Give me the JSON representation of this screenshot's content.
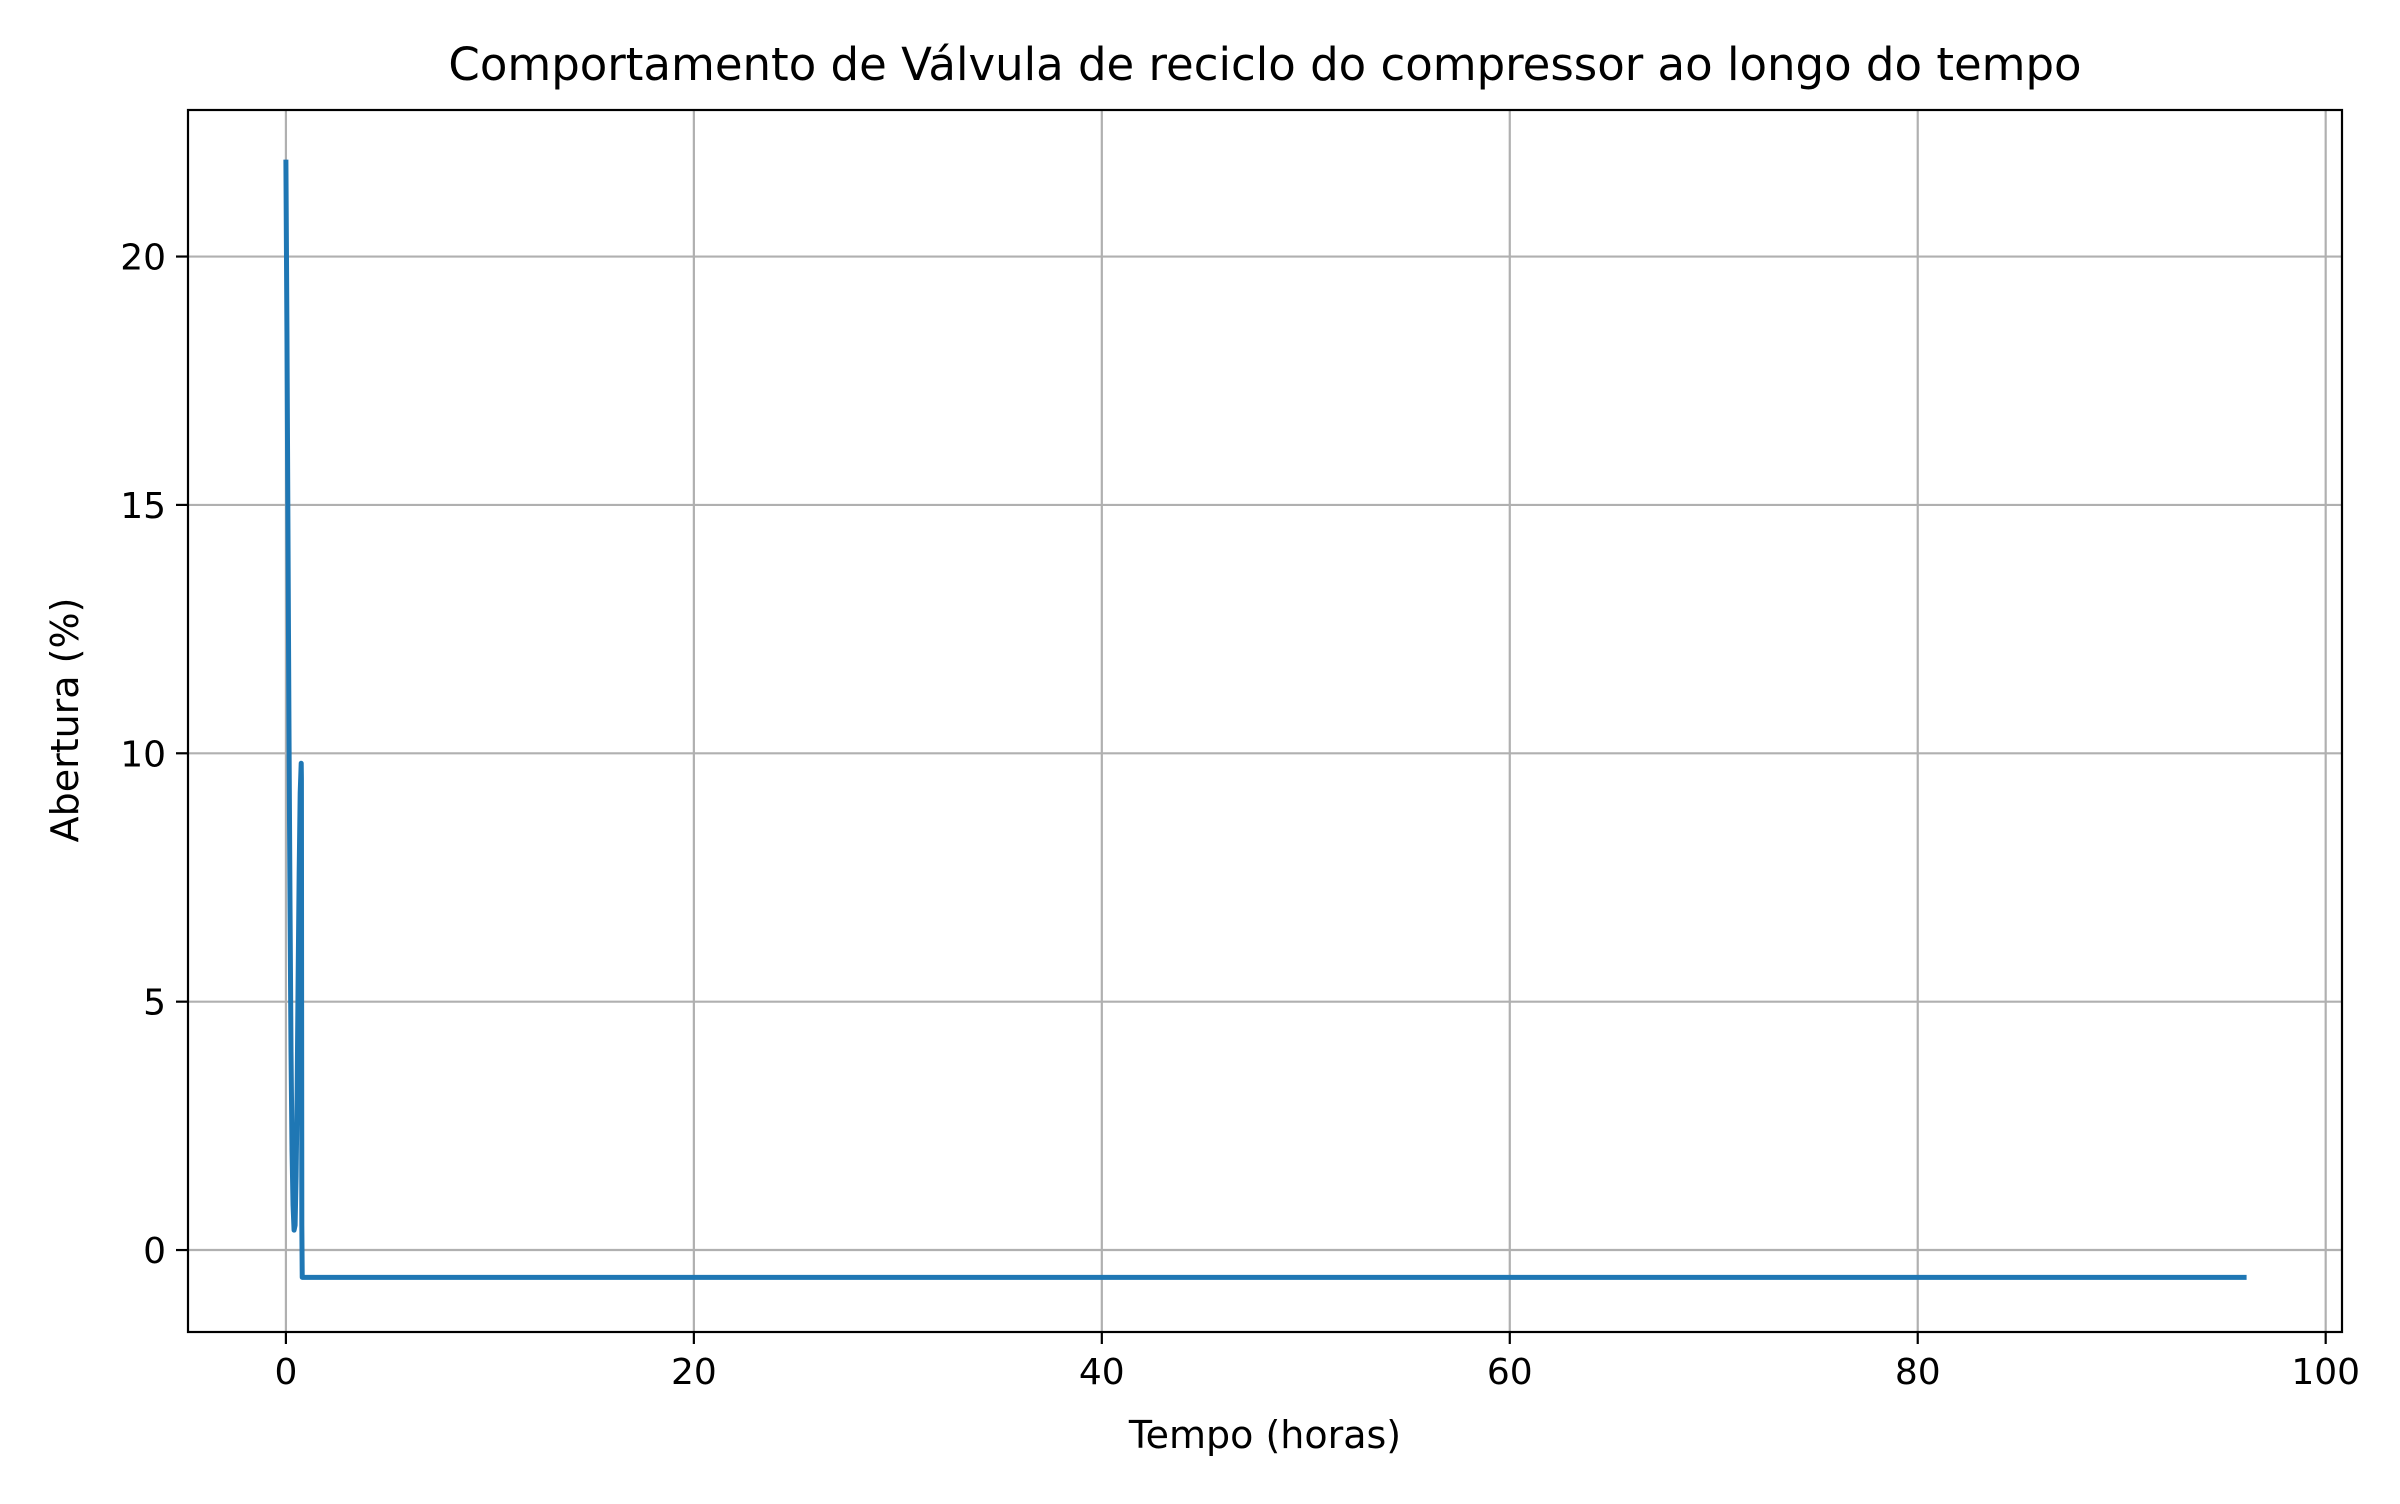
{
  "chart_data": {
    "type": "line",
    "title": "Comportamento de Válvula de reciclo do compressor ao longo do tempo",
    "xlabel": "Tempo (horas)",
    "ylabel": "Abertura (%)",
    "xlim": [
      -4.8,
      100.8
    ],
    "ylim": [
      -1.65,
      22.95
    ],
    "xticks": [
      0,
      20,
      40,
      60,
      80,
      100
    ],
    "yticks": [
      0,
      5,
      10,
      15,
      20
    ],
    "grid": true,
    "line_color": "#1f77b4",
    "grid_color": "#b0b0b0",
    "series": [
      {
        "x": [
          0.0,
          0.05,
          0.1,
          0.15,
          0.2,
          0.25,
          0.3,
          0.35,
          0.4,
          0.45,
          0.5,
          0.55,
          0.6,
          0.65,
          0.7,
          0.75,
          0.76,
          0.78,
          0.8,
          1.0,
          10.0,
          20.0,
          40.0,
          60.0,
          80.0,
          96.0
        ],
        "y": [
          21.9,
          18.5,
          14.5,
          10.5,
          7.0,
          4.0,
          2.0,
          0.9,
          0.4,
          0.5,
          1.5,
          3.2,
          5.5,
          7.6,
          9.2,
          9.8,
          9.5,
          0.5,
          -0.55,
          -0.55,
          -0.55,
          -0.55,
          -0.55,
          -0.55,
          -0.55,
          -0.55
        ]
      }
    ]
  }
}
